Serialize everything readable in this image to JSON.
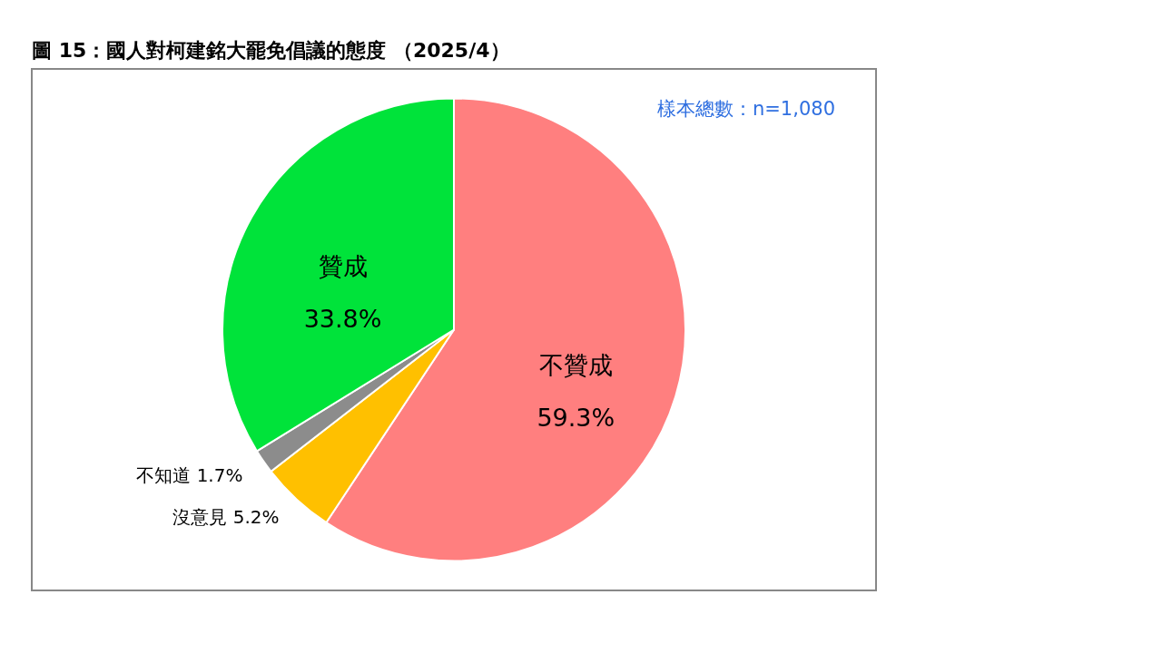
{
  "chart_data": {
    "type": "pie",
    "title": "圖 15：國人對柯建銘大罷免倡議的態度 （2025/4）",
    "categories": [
      "不贊成",
      "沒意見",
      "不知道",
      "贊成"
    ],
    "values": [
      59.3,
      5.2,
      1.7,
      33.8
    ],
    "colors": [
      "#ff7f7f",
      "#ffc000",
      "#8c8c8c",
      "#00e33a"
    ],
    "value_labels": [
      "59.3%",
      "5.2%",
      "1.7%",
      "33.8%"
    ],
    "annotations": [
      "樣本總數：n=1,080"
    ],
    "legend": false
  }
}
